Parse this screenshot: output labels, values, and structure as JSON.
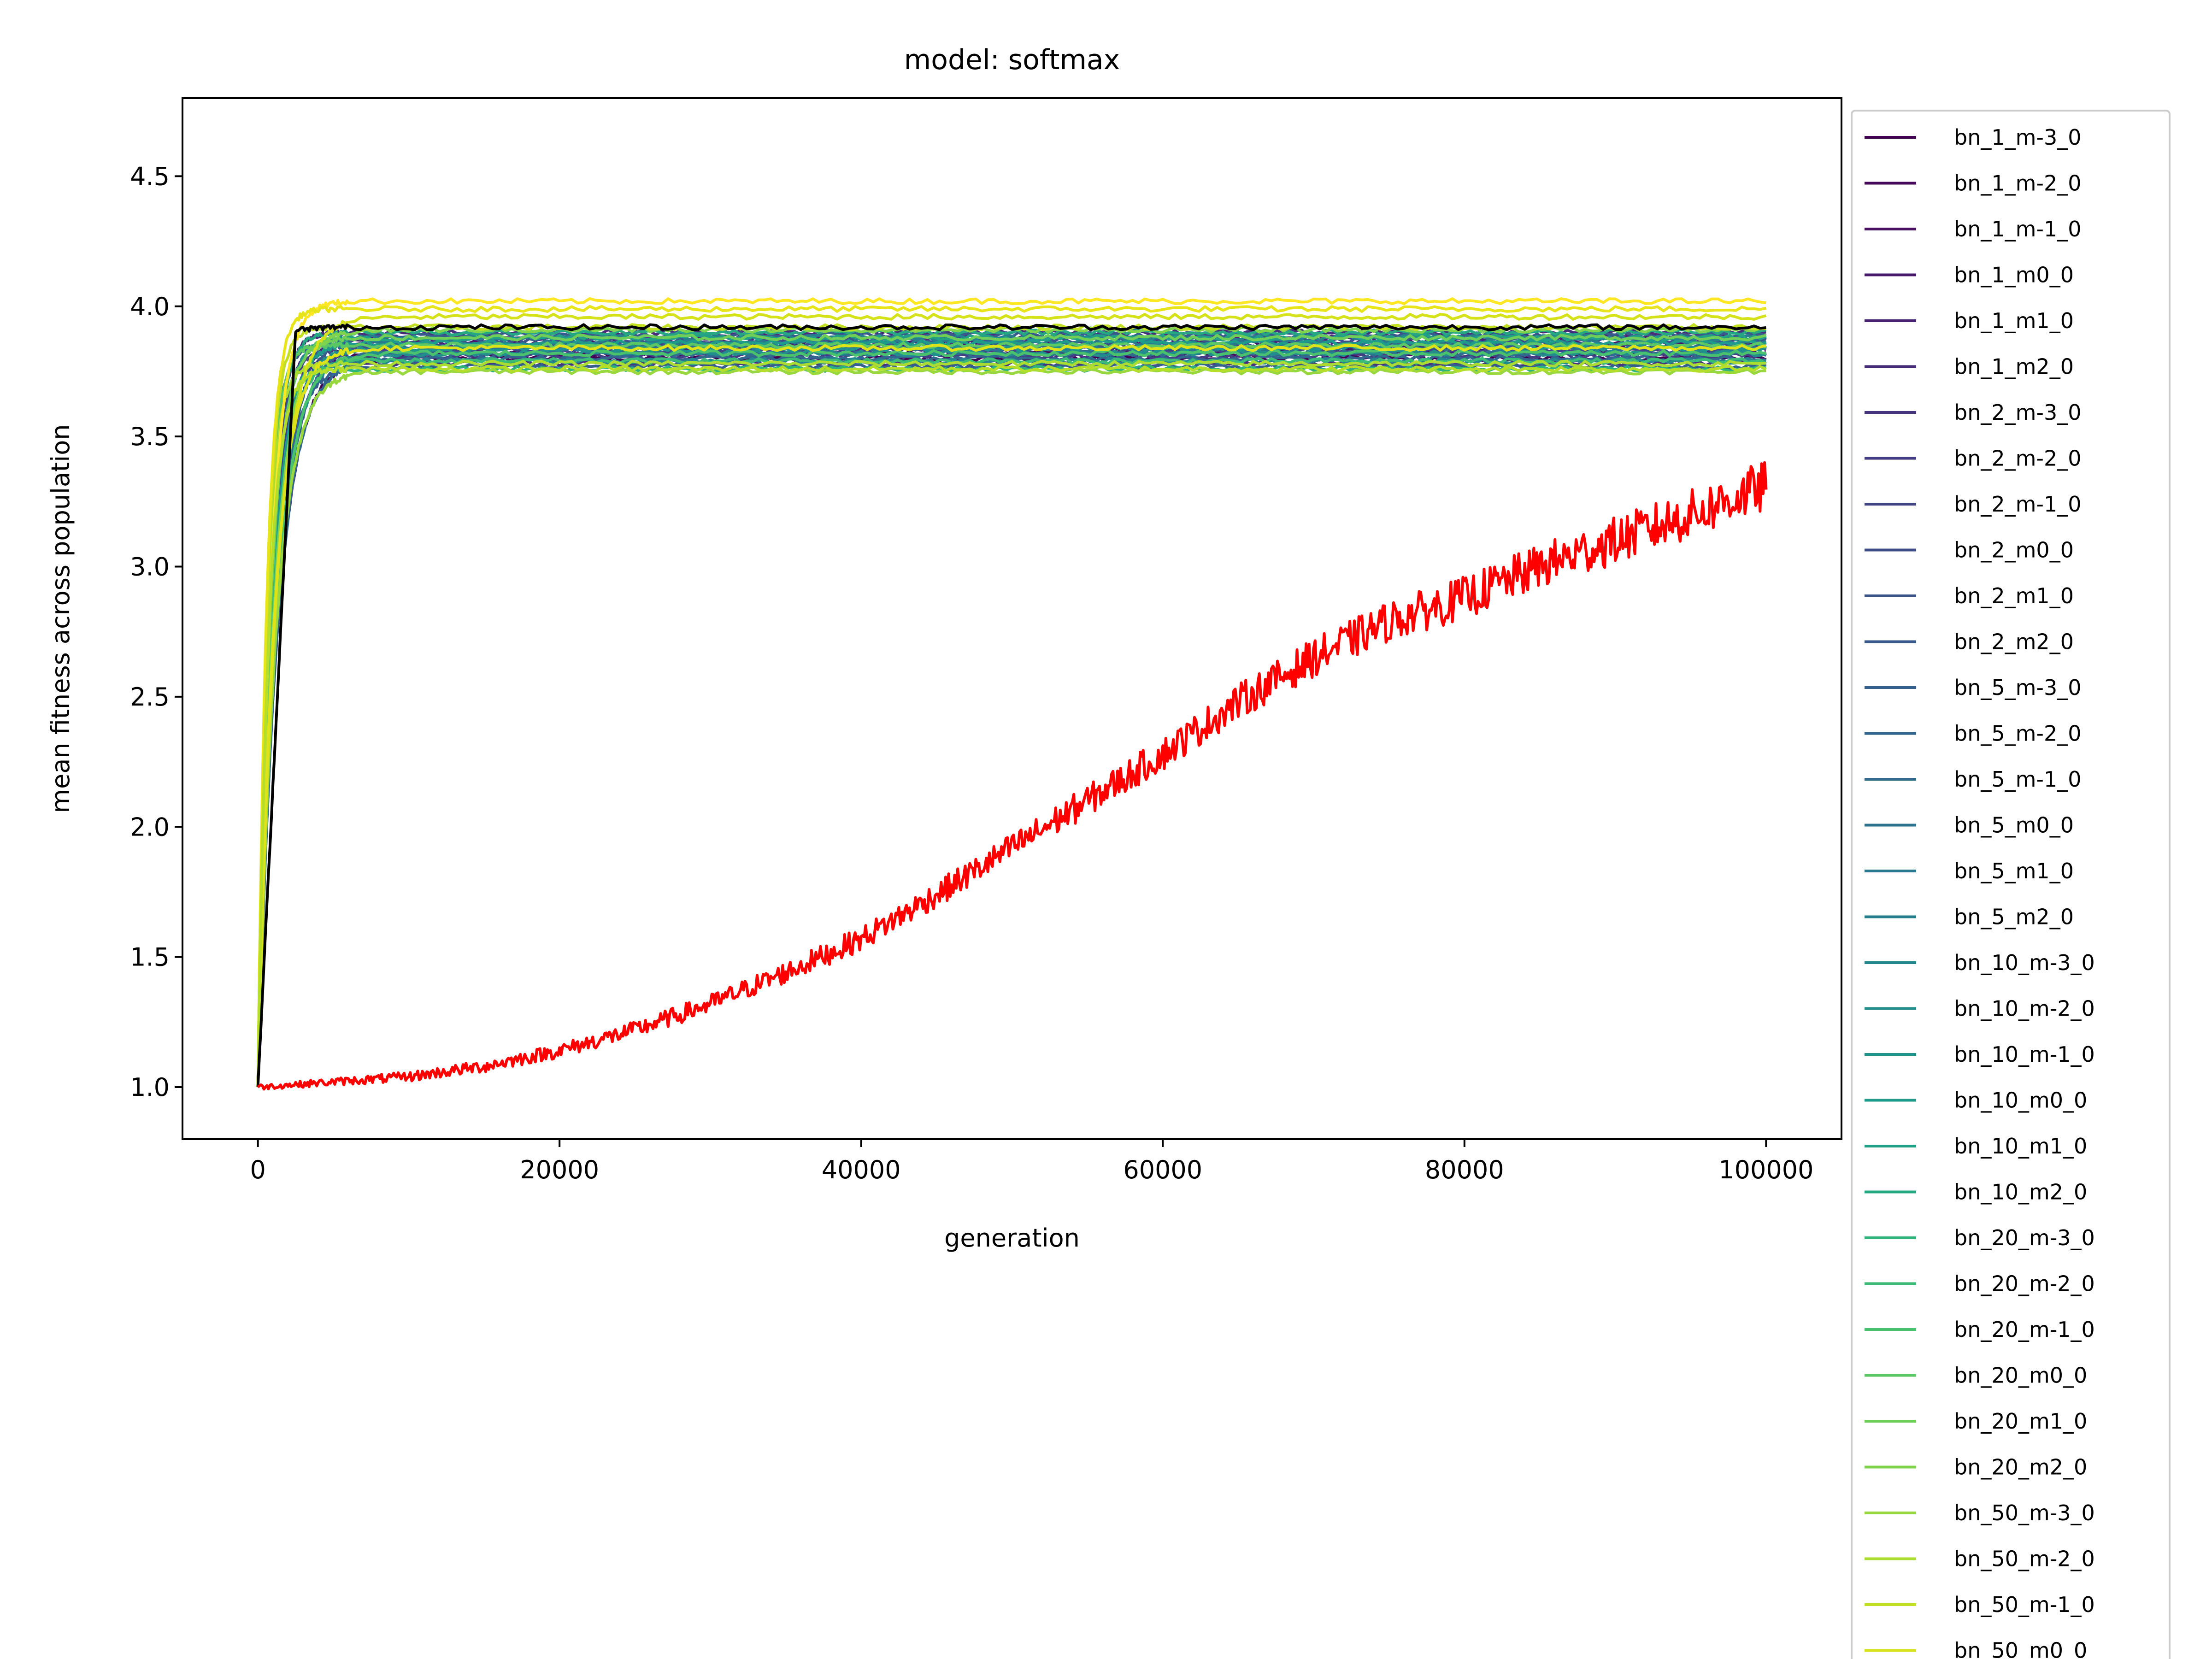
{
  "chart_data": {
    "type": "line",
    "title": "model: softmax",
    "xlabel": "generation",
    "ylabel": "mean fitness across population",
    "xlim": [
      -5000,
      105000
    ],
    "ylim": [
      0.8,
      4.8
    ],
    "xticks": [
      0,
      20000,
      40000,
      60000,
      80000,
      100000
    ],
    "yticks": [
      1.0,
      1.5,
      2.0,
      2.5,
      3.0,
      3.5,
      4.0,
      4.5
    ],
    "xtick_labels": [
      "0",
      "20000",
      "40000",
      "60000",
      "80000",
      "100000"
    ],
    "ytick_labels": [
      "1.0",
      "1.5",
      "2.0",
      "2.5",
      "3.0",
      "3.5",
      "4.0",
      "4.5"
    ],
    "grid": false,
    "legend_position": "outside-right",
    "x": [
      0,
      2500,
      5000,
      10000,
      15000,
      20000,
      25000,
      30000,
      35000,
      40000,
      45000,
      50000,
      55000,
      60000,
      65000,
      70000,
      75000,
      80000,
      85000,
      90000,
      95000,
      100000
    ],
    "series": [
      {
        "name": "bn_1_m-3_0",
        "color": "#440154",
        "plateau": 3.8
      },
      {
        "name": "bn_1_m-2_0",
        "color": "#46085c",
        "plateau": 3.82
      },
      {
        "name": "bn_1_m-1_0",
        "color": "#471063",
        "plateau": 3.84
      },
      {
        "name": "bn_1_m0_0",
        "color": "#481a6c",
        "plateau": 3.86
      },
      {
        "name": "bn_1_m1_0",
        "color": "#482273",
        "plateau": 3.88
      },
      {
        "name": "bn_1_m2_0",
        "color": "#472c7a",
        "plateau": 3.9
      },
      {
        "name": "bn_2_m-3_0",
        "color": "#46337e",
        "plateau": 3.78
      },
      {
        "name": "bn_2_m-2_0",
        "color": "#433d84",
        "plateau": 3.81
      },
      {
        "name": "bn_2_m-1_0",
        "color": "#414487",
        "plateau": 3.83
      },
      {
        "name": "bn_2_m0_0",
        "color": "#3e4c8a",
        "plateau": 3.85
      },
      {
        "name": "bn_2_m1_0",
        "color": "#3b528b",
        "plateau": 3.87
      },
      {
        "name": "bn_2_m2_0",
        "color": "#38598c",
        "plateau": 3.89
      },
      {
        "name": "bn_5_m-3_0",
        "color": "#355f8d",
        "plateau": 3.77
      },
      {
        "name": "bn_5_m-2_0",
        "color": "#31668e",
        "plateau": 3.8
      },
      {
        "name": "bn_5_m-1_0",
        "color": "#2e6d8e",
        "plateau": 3.82
      },
      {
        "name": "bn_5_m0_0",
        "color": "#2c728e",
        "plateau": 3.84
      },
      {
        "name": "bn_5_m1_0",
        "color": "#29798e",
        "plateau": 3.86
      },
      {
        "name": "bn_5_m2_0",
        "color": "#277f8e",
        "plateau": 3.88
      },
      {
        "name": "bn_10_m-3_0",
        "color": "#24868e",
        "plateau": 3.79
      },
      {
        "name": "bn_10_m-2_0",
        "color": "#218e8d",
        "plateau": 3.82
      },
      {
        "name": "bn_10_m-1_0",
        "color": "#1f938c",
        "plateau": 3.84
      },
      {
        "name": "bn_10_m0_0",
        "color": "#1e9b8a",
        "plateau": 3.86
      },
      {
        "name": "bn_10_m1_0",
        "color": "#21a085",
        "plateau": 3.88
      },
      {
        "name": "bn_10_m2_0",
        "color": "#25a782",
        "plateau": 3.9
      },
      {
        "name": "bn_20_m-3_0",
        "color": "#2eb37c",
        "plateau": 3.76
      },
      {
        "name": "bn_20_m-2_0",
        "color": "#3bbb75",
        "plateau": 3.79
      },
      {
        "name": "bn_20_m-1_0",
        "color": "#4ac16d",
        "plateau": 3.82
      },
      {
        "name": "bn_20_m0_0",
        "color": "#5cc863",
        "plateau": 3.85
      },
      {
        "name": "bn_20_m1_0",
        "color": "#6ece58",
        "plateau": 3.88
      },
      {
        "name": "bn_20_m2_0",
        "color": "#80d34d",
        "plateau": 3.91
      },
      {
        "name": "bn_50_m-3_0",
        "color": "#98d83e",
        "plateau": 3.75
      },
      {
        "name": "bn_50_m-2_0",
        "color": "#abdc32",
        "plateau": 3.78
      },
      {
        "name": "bn_50_m-1_0",
        "color": "#c2df23",
        "plateau": 3.92
      },
      {
        "name": "bn_50_m0_0",
        "color": "#d5e21a",
        "plateau": 3.96
      }
    ],
    "unlabeled_series": [
      {
        "color": "#fde725",
        "plateau": 4.02
      },
      {
        "color": "#e7e419",
        "plateau": 3.99
      },
      {
        "color": "#dde318",
        "plateau": 3.84
      },
      {
        "color": "#b5de2b",
        "plateau": 3.76
      },
      {
        "color": "#000000",
        "plateau": 3.92,
        "values": [
          1.0,
          3.91,
          3.92,
          3.92,
          3.92,
          3.92,
          3.92,
          3.92,
          3.92,
          3.92,
          3.92,
          3.92,
          3.92,
          3.92,
          3.92,
          3.92,
          3.92,
          3.92,
          3.92,
          3.92,
          3.92,
          3.92
        ]
      },
      {
        "color": "#ff0000",
        "values": [
          1.0,
          1.01,
          1.02,
          1.04,
          1.08,
          1.14,
          1.22,
          1.32,
          1.44,
          1.57,
          1.74,
          1.92,
          2.1,
          2.28,
          2.48,
          2.65,
          2.79,
          2.88,
          3.0,
          3.1,
          3.2,
          3.31
        ]
      }
    ]
  }
}
